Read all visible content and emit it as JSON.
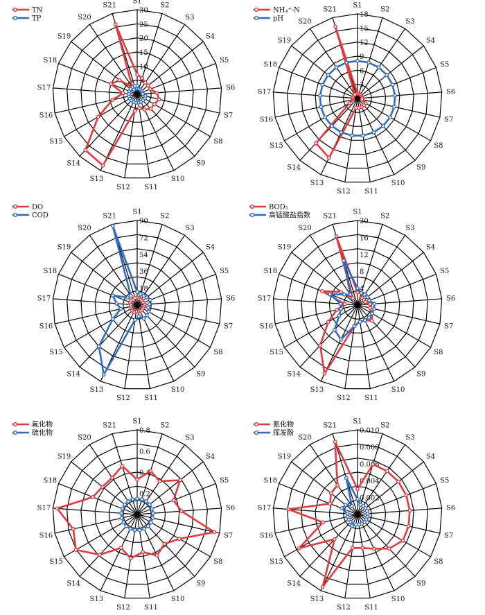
{
  "chart_data": [
    {
      "type": "radar",
      "categories": [
        "S1",
        "S2",
        "S3",
        "S4",
        "S5",
        "S6",
        "S7",
        "S8",
        "S9",
        "S10",
        "S11",
        "S12",
        "S13",
        "S14",
        "S15",
        "S16",
        "S17",
        "S18",
        "S19",
        "S20",
        "S21"
      ],
      "rmax": 30,
      "ticks": [
        "5",
        "10",
        "15",
        "20",
        "25",
        "30"
      ],
      "tick_values": [
        5,
        10,
        15,
        20,
        25,
        30
      ],
      "series": [
        {
          "name": "TN",
          "color": "#e0393e",
          "values": [
            7,
            6,
            5,
            5,
            5,
            7,
            8,
            7,
            7,
            6,
            5,
            6,
            28,
            27,
            16,
            9,
            5,
            10,
            8,
            3,
            26
          ]
        },
        {
          "name": "TP",
          "color": "#2e6bc4",
          "values": [
            3,
            2,
            2,
            2,
            2,
            2,
            3,
            3,
            3,
            3,
            3,
            3,
            3,
            3,
            3,
            3,
            3,
            3,
            3,
            2,
            3
          ]
        }
      ]
    },
    {
      "type": "radar",
      "categories": [
        "S1",
        "S2",
        "S3",
        "S4",
        "S5",
        "S6",
        "S7",
        "S8",
        "S9",
        "S10",
        "S11",
        "S12",
        "S13",
        "S14",
        "S15",
        "S16",
        "S17",
        "S18",
        "S19",
        "S20",
        "S21"
      ],
      "rmax": 18,
      "ticks": [
        "3",
        "6",
        "9",
        "12",
        "15",
        "18"
      ],
      "tick_values": [
        3,
        6,
        9,
        12,
        15,
        18
      ],
      "series": [
        {
          "name": "NH₄⁺-N",
          "color": "#e0393e",
          "values": [
            1,
            1,
            1,
            1,
            1,
            1,
            1,
            2,
            2,
            2,
            2,
            2,
            14,
            13,
            2,
            1,
            1,
            1,
            1,
            1,
            16
          ]
        },
        {
          "name": "pH",
          "color": "#2e6bc4",
          "values": [
            8,
            8,
            8,
            8,
            8,
            8,
            8,
            8,
            8,
            8,
            8,
            8,
            8,
            8,
            8,
            8,
            8,
            8,
            8,
            8,
            8
          ]
        }
      ]
    },
    {
      "type": "radar",
      "categories": [
        "S1",
        "S2",
        "S3",
        "S4",
        "S5",
        "S6",
        "S7",
        "S8",
        "S9",
        "S10",
        "S11",
        "S12",
        "S13",
        "S14",
        "S15",
        "S16",
        "S17",
        "S18",
        "S19",
        "S20",
        "S21"
      ],
      "rmax": 90,
      "ticks": [
        "18",
        "36",
        "54",
        "72",
        "90"
      ],
      "tick_values": [
        18,
        36,
        54,
        72,
        90
      ],
      "series": [
        {
          "name": "DO",
          "color": "#e0393e",
          "values": [
            8,
            7,
            7,
            7,
            7,
            8,
            7,
            7,
            7,
            7,
            7,
            7,
            8,
            8,
            7,
            7,
            7,
            8,
            8,
            7,
            8
          ]
        },
        {
          "name": "COD",
          "color": "#2e6bc4",
          "values": [
            14,
            12,
            12,
            13,
            15,
            13,
            12,
            14,
            15,
            16,
            12,
            16,
            82,
            60,
            30,
            18,
            22,
            28,
            13,
            12,
            88
          ]
        }
      ]
    },
    {
      "type": "radar",
      "categories": [
        "S1",
        "S2",
        "S3",
        "S4",
        "S5",
        "S6",
        "S7",
        "S8",
        "S9",
        "S10",
        "S11",
        "S12",
        "S13",
        "S14",
        "S15",
        "S16",
        "S17",
        "S18",
        "S19",
        "S20",
        "S21"
      ],
      "rmax": 20,
      "ticks": [
        "4",
        "8",
        "12",
        "16",
        "20"
      ],
      "tick_values": [
        4,
        8,
        12,
        16,
        20
      ],
      "series": [
        {
          "name": "BOD₅",
          "color": "#e0393e",
          "values": [
            3,
            3,
            2,
            2,
            2,
            3,
            3,
            4,
            5,
            4,
            4,
            5,
            18,
            13,
            8,
            5,
            3,
            9,
            5,
            2,
            17
          ]
        },
        {
          "name": "高锰酸盐指数",
          "color": "#2e6bc4",
          "values": [
            4,
            3,
            3,
            3,
            3,
            4,
            4,
            4,
            4,
            4,
            4,
            5,
            9,
            8,
            5,
            4,
            4,
            7,
            4,
            3,
            11
          ]
        }
      ]
    },
    {
      "type": "radar",
      "categories": [
        "S1",
        "S2",
        "S3",
        "S4",
        "S5",
        "S6",
        "S7",
        "S8",
        "S9",
        "S10",
        "S11",
        "S12",
        "S13",
        "S14",
        "S15",
        "S16",
        "S17",
        "S18",
        "S19",
        "S20",
        "S21"
      ],
      "rmax": 0.8,
      "ticks": [
        "0.2",
        "0.4",
        "0.6",
        "0.8"
      ],
      "tick_values": [
        0.2,
        0.4,
        0.6,
        0.8
      ],
      "series": [
        {
          "name": "氟化物",
          "color": "#e0393e",
          "values": [
            0.33,
            0.43,
            0.38,
            0.52,
            0.37,
            0.42,
            0.75,
            0.46,
            0.38,
            0.43,
            0.36,
            0.42,
            0.35,
            0.52,
            0.67,
            0.62,
            0.76,
            0.45,
            0.42,
            0.42,
            0.48
          ]
        },
        {
          "name": "硫化物",
          "color": "#2e6bc4",
          "values": [
            0.15,
            0.15,
            0.15,
            0.15,
            0.15,
            0.15,
            0.15,
            0.15,
            0.15,
            0.15,
            0.15,
            0.15,
            0.15,
            0.15,
            0.15,
            0.15,
            0.15,
            0.15,
            0.15,
            0.15,
            0.15
          ]
        }
      ]
    },
    {
      "type": "radar",
      "categories": [
        "S1",
        "S2",
        "S3",
        "S4",
        "S5",
        "S6",
        "S7",
        "S8",
        "S9",
        "S10",
        "S11",
        "S12",
        "S13",
        "S14",
        "S15",
        "S16",
        "S17",
        "S18",
        "S19",
        "S20",
        "S21"
      ],
      "rmax": 0.01,
      "ticks": [
        "0.002",
        "0.004",
        "0.006",
        "0.008",
        "0.010"
      ],
      "tick_values": [
        0.002,
        0.004,
        0.006,
        0.008,
        0.01
      ],
      "series": [
        {
          "name": "氰化物",
          "color": "#e0393e",
          "values": [
            0.003,
            0.0062,
            0.0062,
            0.0062,
            0.0062,
            0.0062,
            0.0062,
            0.0062,
            0.0055,
            0.0045,
            0.004,
            0.004,
            0.0095,
            0.004,
            0.008,
            0.0042,
            0.0082,
            0.0035,
            0.004,
            0.0042,
            0.009
          ]
        },
        {
          "name": "挥发酚",
          "color": "#2e6bc4",
          "values": [
            0.0018,
            0.0012,
            0.0012,
            0.0012,
            0.0012,
            0.0012,
            0.0012,
            0.0012,
            0.0012,
            0.0012,
            0.0012,
            0.0012,
            0.0015,
            0.0012,
            0.0012,
            0.0012,
            0.0012,
            0.002,
            0.0018,
            0.0012,
            0.0045
          ]
        }
      ]
    }
  ]
}
